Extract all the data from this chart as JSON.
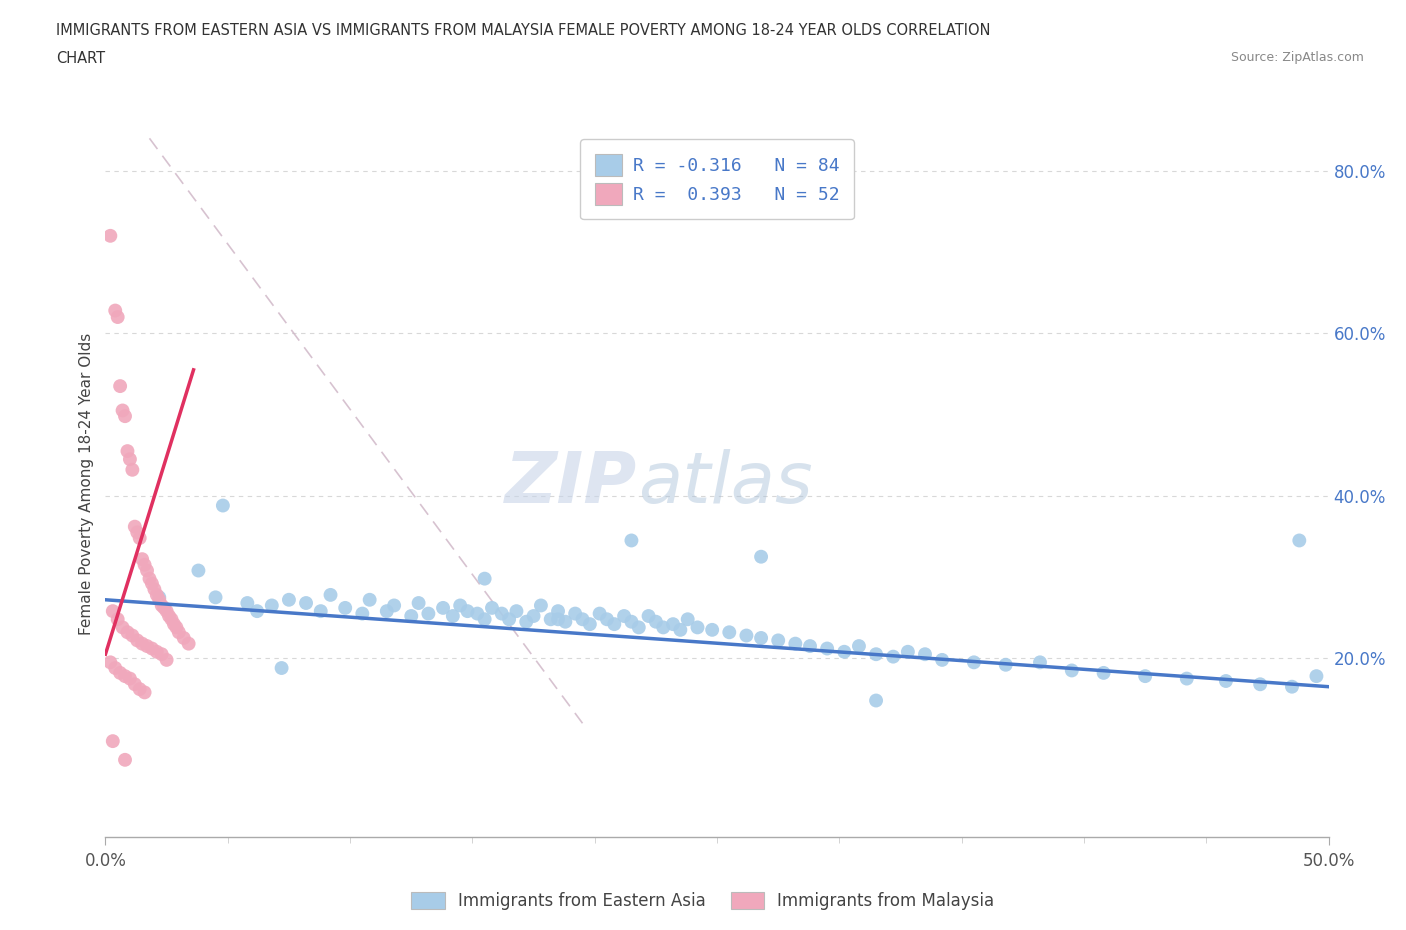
{
  "title_line1": "IMMIGRANTS FROM EASTERN ASIA VS IMMIGRANTS FROM MALAYSIA FEMALE POVERTY AMONG 18-24 YEAR OLDS CORRELATION",
  "title_line2": "CHART",
  "source_text": "Source: ZipAtlas.com",
  "ylabel": "Female Poverty Among 18-24 Year Olds",
  "xlim": [
    0.0,
    0.5
  ],
  "ylim": [
    -0.02,
    0.85
  ],
  "y_ticks_right": [
    0.2,
    0.4,
    0.6,
    0.8
  ],
  "y_tick_labels_right": [
    "20.0%",
    "40.0%",
    "60.0%",
    "80.0%"
  ],
  "x_ticks": [
    0.0,
    0.5
  ],
  "x_tick_labels": [
    "0.0%",
    "50.0%"
  ],
  "legend_r1": "R = -0.316   N = 84",
  "legend_r2": "R =  0.393   N = 52",
  "watermark_zip": "ZIP",
  "watermark_atlas": "atlas",
  "color_blue": "#a8cce8",
  "color_pink": "#f0a8bc",
  "color_blue_line": "#4878c8",
  "color_pink_line": "#e03060",
  "color_dashed": "#d0b8c8",
  "blue_scatter_x": [
    0.022,
    0.038,
    0.045,
    0.058,
    0.062,
    0.068,
    0.075,
    0.082,
    0.088,
    0.092,
    0.098,
    0.105,
    0.108,
    0.115,
    0.118,
    0.125,
    0.128,
    0.132,
    0.138,
    0.142,
    0.145,
    0.148,
    0.152,
    0.155,
    0.158,
    0.162,
    0.165,
    0.168,
    0.172,
    0.175,
    0.178,
    0.182,
    0.185,
    0.188,
    0.192,
    0.195,
    0.198,
    0.202,
    0.205,
    0.208,
    0.212,
    0.215,
    0.218,
    0.222,
    0.225,
    0.228,
    0.232,
    0.235,
    0.238,
    0.242,
    0.248,
    0.255,
    0.262,
    0.268,
    0.275,
    0.282,
    0.288,
    0.295,
    0.302,
    0.308,
    0.315,
    0.322,
    0.328,
    0.335,
    0.342,
    0.355,
    0.368,
    0.382,
    0.395,
    0.408,
    0.425,
    0.442,
    0.458,
    0.472,
    0.485,
    0.495,
    0.048,
    0.072,
    0.155,
    0.185,
    0.215,
    0.268,
    0.315,
    0.488
  ],
  "blue_scatter_y": [
    0.275,
    0.308,
    0.275,
    0.268,
    0.258,
    0.265,
    0.272,
    0.268,
    0.258,
    0.278,
    0.262,
    0.255,
    0.272,
    0.258,
    0.265,
    0.252,
    0.268,
    0.255,
    0.262,
    0.252,
    0.265,
    0.258,
    0.255,
    0.248,
    0.262,
    0.255,
    0.248,
    0.258,
    0.245,
    0.252,
    0.265,
    0.248,
    0.258,
    0.245,
    0.255,
    0.248,
    0.242,
    0.255,
    0.248,
    0.242,
    0.252,
    0.245,
    0.238,
    0.252,
    0.245,
    0.238,
    0.242,
    0.235,
    0.248,
    0.238,
    0.235,
    0.232,
    0.228,
    0.225,
    0.222,
    0.218,
    0.215,
    0.212,
    0.208,
    0.215,
    0.205,
    0.202,
    0.208,
    0.205,
    0.198,
    0.195,
    0.192,
    0.195,
    0.185,
    0.182,
    0.178,
    0.175,
    0.172,
    0.168,
    0.165,
    0.178,
    0.388,
    0.188,
    0.298,
    0.248,
    0.345,
    0.325,
    0.148,
    0.345
  ],
  "pink_scatter_x": [
    0.002,
    0.004,
    0.005,
    0.006,
    0.007,
    0.008,
    0.009,
    0.01,
    0.011,
    0.012,
    0.013,
    0.014,
    0.015,
    0.016,
    0.017,
    0.018,
    0.019,
    0.02,
    0.021,
    0.022,
    0.023,
    0.024,
    0.025,
    0.026,
    0.027,
    0.028,
    0.029,
    0.03,
    0.032,
    0.034,
    0.003,
    0.005,
    0.007,
    0.009,
    0.011,
    0.013,
    0.015,
    0.017,
    0.019,
    0.021,
    0.023,
    0.025,
    0.002,
    0.004,
    0.006,
    0.008,
    0.01,
    0.012,
    0.014,
    0.016,
    0.003,
    0.008
  ],
  "pink_scatter_y": [
    0.72,
    0.628,
    0.62,
    0.535,
    0.505,
    0.498,
    0.455,
    0.445,
    0.432,
    0.362,
    0.355,
    0.348,
    0.322,
    0.315,
    0.308,
    0.298,
    0.292,
    0.285,
    0.278,
    0.272,
    0.265,
    0.262,
    0.258,
    0.252,
    0.248,
    0.242,
    0.238,
    0.232,
    0.225,
    0.218,
    0.258,
    0.248,
    0.238,
    0.232,
    0.228,
    0.222,
    0.218,
    0.215,
    0.212,
    0.208,
    0.205,
    0.198,
    0.195,
    0.188,
    0.182,
    0.178,
    0.175,
    0.168,
    0.162,
    0.158,
    0.098,
    0.075
  ]
}
